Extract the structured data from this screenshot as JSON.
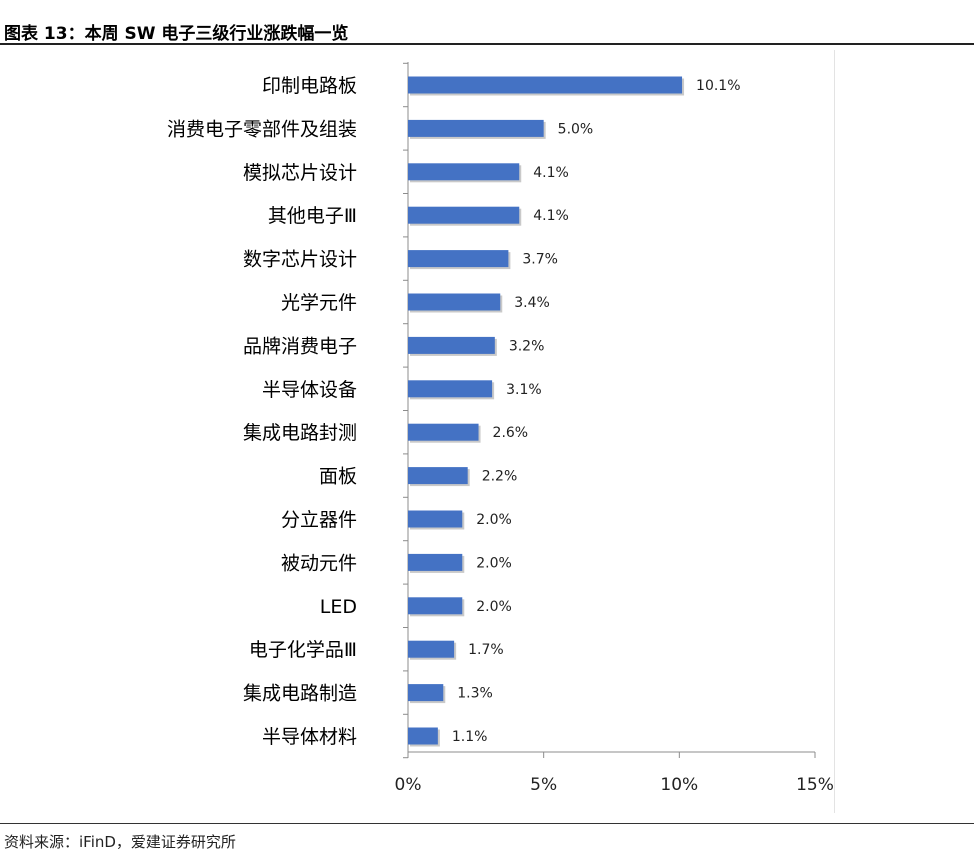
{
  "header": {
    "title": "图表 13：本周 SW 电子三级行业涨跌幅一览"
  },
  "footer": {
    "source": "资料来源：iFinD，爱建证券研究所"
  },
  "colors": {
    "bar": "#4472c4",
    "axis": "#8c8c8c",
    "text": "#000000"
  },
  "chart_data": {
    "type": "bar",
    "orientation": "horizontal",
    "title": "",
    "xlabel": "",
    "ylabel": "",
    "categories": [
      "印制电路板",
      "消费电子零部件及组装",
      "模拟芯片设计",
      "其他电子Ⅲ",
      "数字芯片设计",
      "光学元件",
      "品牌消费电子",
      "半导体设备",
      "集成电路封测",
      "面板",
      "分立器件",
      "被动元件",
      "LED",
      "电子化学品Ⅲ",
      "集成电路制造",
      "半导体材料"
    ],
    "values": [
      10.1,
      5.0,
      4.1,
      4.1,
      3.7,
      3.4,
      3.2,
      3.1,
      2.6,
      2.2,
      2.0,
      2.0,
      2.0,
      1.7,
      1.3,
      1.1
    ],
    "data_labels": [
      "10.1%",
      "5.0%",
      "4.1%",
      "4.1%",
      "3.7%",
      "3.4%",
      "3.2%",
      "3.1%",
      "2.6%",
      "2.2%",
      "2.0%",
      "2.0%",
      "2.0%",
      "1.7%",
      "1.3%",
      "1.1%"
    ],
    "xlim": [
      0,
      15
    ],
    "xticks": [
      0,
      5,
      10,
      15
    ],
    "xtick_labels": [
      "0%",
      "5%",
      "10%",
      "15%"
    ],
    "grid": false,
    "legend": "none"
  }
}
